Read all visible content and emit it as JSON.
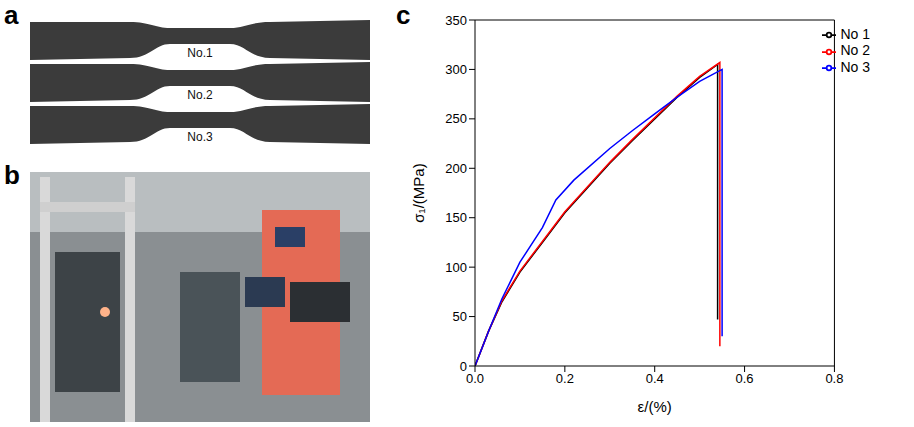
{
  "panel_labels": [
    "a",
    "b",
    "c"
  ],
  "specimens": [
    "No.1",
    "No.2",
    "No.3"
  ],
  "chart_data": {
    "type": "line",
    "x_label": "ε/(%)",
    "y_label": "σ₁/(MPa)",
    "xlim": [
      0,
      0.8
    ],
    "xticks": [
      {
        "value": 0,
        "label": "0.0"
      },
      {
        "value": 0.2,
        "label": "0.2"
      },
      {
        "value": 0.4,
        "label": "0.4"
      },
      {
        "value": 0.6,
        "label": "0.6"
      },
      {
        "value": 0.8,
        "label": "0.8"
      }
    ],
    "ylim": [
      0,
      350
    ],
    "yticks": [
      0,
      50,
      100,
      150,
      200,
      250,
      300,
      350
    ],
    "grid": false,
    "legend": "top-right",
    "series": [
      {
        "name": "No 1",
        "color": "#000000",
        "x": [
          0,
          0.03,
          0.06,
          0.1,
          0.15,
          0.2,
          0.25,
          0.3,
          0.35,
          0.4,
          0.45,
          0.5,
          0.54,
          0.54
        ],
        "values": [
          0,
          35,
          65,
          95,
          125,
          155,
          180,
          205,
          228,
          250,
          272,
          292,
          305,
          47
        ]
      },
      {
        "name": "No 2",
        "color": "#ff0000",
        "x": [
          0,
          0.03,
          0.06,
          0.1,
          0.15,
          0.2,
          0.25,
          0.3,
          0.35,
          0.4,
          0.45,
          0.5,
          0.545,
          0.545
        ],
        "values": [
          0,
          35,
          66,
          96,
          126,
          156,
          181,
          206,
          229,
          251,
          273,
          293,
          307,
          20
        ]
      },
      {
        "name": "No 3",
        "color": "#0000ff",
        "x": [
          0,
          0.03,
          0.06,
          0.1,
          0.15,
          0.18,
          0.22,
          0.3,
          0.35,
          0.4,
          0.45,
          0.5,
          0.55,
          0.55
        ],
        "values": [
          0,
          35,
          68,
          105,
          140,
          168,
          188,
          220,
          238,
          255,
          272,
          288,
          300,
          30
        ]
      }
    ]
  }
}
